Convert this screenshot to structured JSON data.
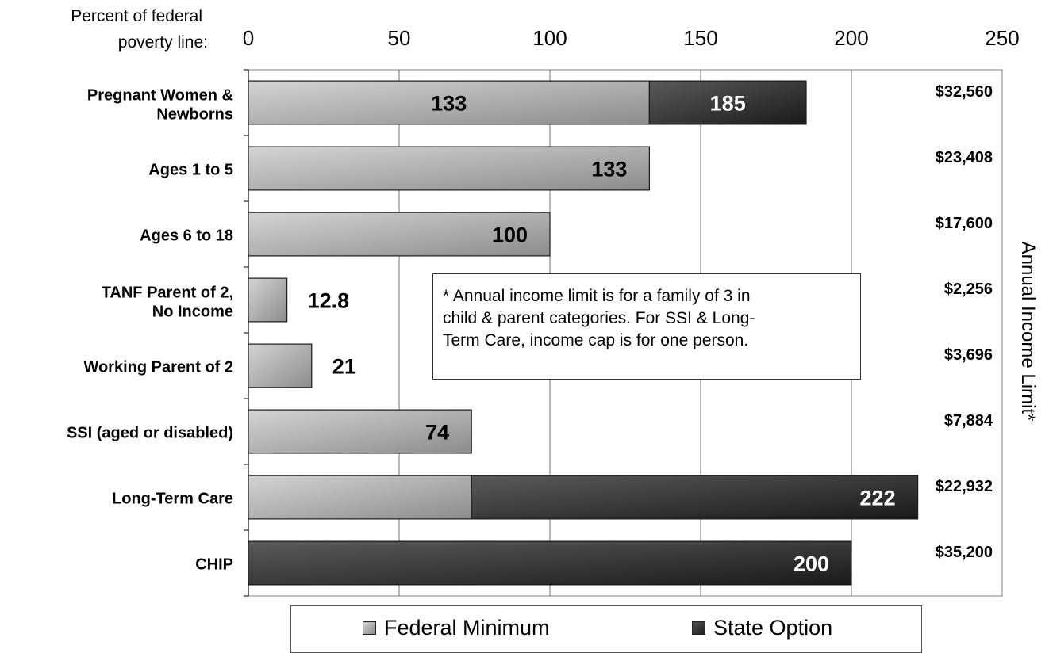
{
  "chart_data": {
    "type": "bar",
    "orientation": "horizontal",
    "stacked": true,
    "axis_caption": "Percent of federal poverty line:",
    "secondary_ylabel": "Annual Income Limit*",
    "xlim": [
      0,
      250
    ],
    "xticks": [
      0,
      50,
      100,
      150,
      200,
      250
    ],
    "grid": true,
    "legend_position": "bottom",
    "categories": [
      [
        "Pregnant Women &",
        "Newborns"
      ],
      [
        "Ages 1 to 5"
      ],
      [
        "Ages 6 to 18"
      ],
      [
        "TANF Parent of 2,",
        "No Income"
      ],
      [
        "Working Parent of 2"
      ],
      [
        "SSI (aged or disabled)"
      ],
      [
        "Long-Term Care"
      ],
      [
        "CHIP"
      ]
    ],
    "series": [
      {
        "name": "Federal Minimum",
        "color": "#a9a9a9",
        "values": [
          133,
          133,
          100,
          12.8,
          21,
          74,
          74,
          0
        ]
      },
      {
        "name": "State Option",
        "color": "#333333",
        "values": [
          52,
          0,
          0,
          0,
          0,
          0,
          148,
          200
        ]
      }
    ],
    "bar_labels": [
      "133|185",
      "133",
      "100",
      "12.8",
      "21",
      "74",
      "222",
      "200"
    ],
    "income_limits": [
      "$32,560",
      "$23,408",
      "$17,600",
      "$2,256",
      "$3,696",
      "$7,884",
      "$22,932",
      "$35,200"
    ],
    "note": [
      "* Annual income limit is for a family of 3 in",
      "child & parent categories. For SSI & Long-",
      "Term Care, income cap is for one person."
    ]
  }
}
